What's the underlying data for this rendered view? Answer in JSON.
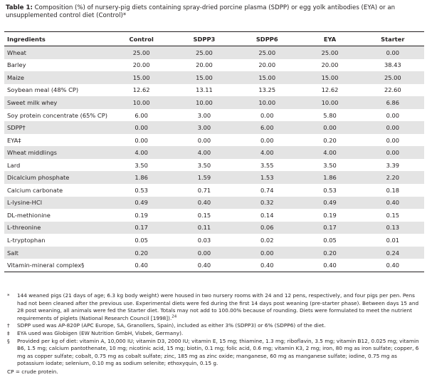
{
  "caption": {
    "label": "Table 1:",
    "text": "Composition (%) of nursery-pig diets containing spray-dried porcine plasma (SDPP) or egg yolk antibodies (EYA) or an unsupplemented control diet (Control)*"
  },
  "table": {
    "headers": [
      "Ingredients",
      "Control",
      "SDPP3",
      "SDPP6",
      "EYA",
      "Starter"
    ],
    "rows": [
      {
        "label": "Wheat",
        "values": [
          "25.00",
          "25.00",
          "25.00",
          "25.00",
          "0.00"
        ]
      },
      {
        "label": "Barley",
        "values": [
          "20.00",
          "20.00",
          "20.00",
          "20.00",
          "38.43"
        ]
      },
      {
        "label": "Maize",
        "values": [
          "15.00",
          "15.00",
          "15.00",
          "15.00",
          "25.00"
        ]
      },
      {
        "label": "Soybean meal (48% CP)",
        "values": [
          "12.62",
          "13.11",
          "13.25",
          "12.62",
          "22.60"
        ]
      },
      {
        "label": "Sweet milk whey",
        "values": [
          "10.00",
          "10.00",
          "10.00",
          "10.00",
          "6.86"
        ]
      },
      {
        "label": "Soy protein concentrate (65% CP)",
        "values": [
          "6.00",
          "3.00",
          "0.00",
          "5.80",
          "0.00"
        ]
      },
      {
        "label": "SDPP†",
        "values": [
          "0.00",
          "3.00",
          "6.00",
          "0.00",
          "0.00"
        ]
      },
      {
        "label": "EYA‡",
        "values": [
          "0.00",
          "0.00",
          "0.00",
          "0.20",
          "0.00"
        ]
      },
      {
        "label": "Wheat middlings",
        "values": [
          "4.00",
          "4.00",
          "4.00",
          "4.00",
          "0.00"
        ]
      },
      {
        "label": "Lard",
        "values": [
          "3.50",
          "3.50",
          "3.55",
          "3.50",
          "3.39"
        ]
      },
      {
        "label": "Dicalcium phosphate",
        "values": [
          "1.86",
          "1.59",
          "1.53",
          "1.86",
          "2.20"
        ]
      },
      {
        "label": "Calcium carbonate",
        "values": [
          "0.53",
          "0.71",
          "0.74",
          "0.53",
          "0.18"
        ]
      },
      {
        "label": "L-lysine-HCl",
        "values": [
          "0.49",
          "0.40",
          "0.32",
          "0.49",
          "0.40"
        ]
      },
      {
        "label": "DL-methionine",
        "values": [
          "0.19",
          "0.15",
          "0.14",
          "0.19",
          "0.15"
        ]
      },
      {
        "label": "L-threonine",
        "values": [
          "0.17",
          "0.11",
          "0.06",
          "0.17",
          "0.13"
        ]
      },
      {
        "label": "L-tryptophan",
        "values": [
          "0.05",
          "0.03",
          "0.02",
          "0.05",
          "0.01"
        ]
      },
      {
        "label": "Salt",
        "values": [
          "0.20",
          "0.00",
          "0.00",
          "0.20",
          "0.24"
        ]
      },
      {
        "label": "Vitamin-mineral complex§",
        "values": [
          "0.40",
          "0.40",
          "0.40",
          "0.40",
          "0.40"
        ]
      }
    ]
  },
  "footnotes": [
    {
      "symbol": "*",
      "text": "144 weaned pigs (21 days of age; 6.3 kg body weight) were housed in two nursery rooms with 24 and 12 pens, respectively, and four pigs per pen. Pens had not been cleaned after the previous use. Experimental diets were fed during the first 14 days post weaning (pre-starter phase). Between days 15 and 28 post weaning, all animals were fed the Starter diet. Totals may not add to 100.00% because of rounding. Diets were formulated to meet the nutrient requirements of piglets (National Research Council [1998]).",
      "ref": "24"
    },
    {
      "symbol": "†",
      "text": "SDPP used was AP-820P (APC Europe, SA, Granollers, Spain), included as either 3% (SDPP3) or 6% (SDPP6) of the diet."
    },
    {
      "symbol": "‡",
      "text": "EYA used was Globigen (EW Nutrition GmbH, Visbek, Germany)."
    },
    {
      "symbol": "§",
      "text": "Provided per kg of diet: vitamin A, 10,000 IU; vitamin D3, 2000 IU; vitamin E, 15 mg; thiamine, 1.3 mg; riboflavin, 3.5 mg; vitamin B12, 0.025 mg; vitamin B6, 1.5 mg; calcium pantothenate, 10 mg; nicotinic acid, 15 mg; biotin, 0.1 mg; folic acid, 0.6 mg; vitamin K3, 2 mg; iron, 80 mg as iron sulfate; copper, 6 mg as copper sulfate; cobalt, 0.75 mg as cobalt sulfate; zinc, 185 mg as zinc oxide; manganese, 60 mg as manganese sulfate; iodine, 0.75 mg as potassium iodate; selenium, 0.10 mg as sodium selenite; ethoxyquin, 0.15 g."
    }
  ],
  "abbreviation": "CP = crude protein."
}
